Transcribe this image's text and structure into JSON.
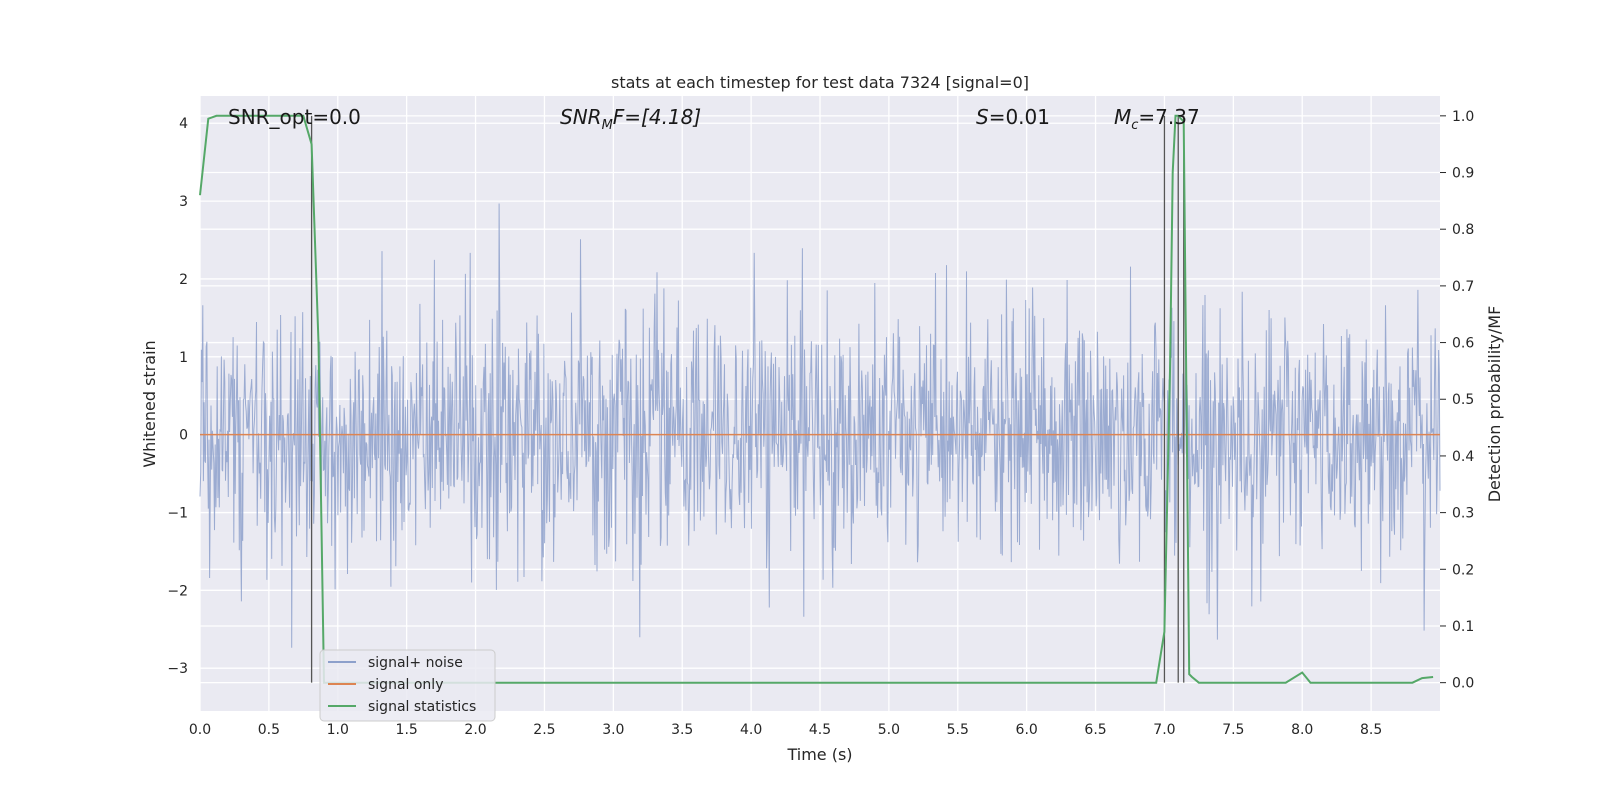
{
  "chart_data": {
    "type": "line",
    "title": "stats at each timestep for test data 7324 [signal=0]",
    "xlabel": "Time (s)",
    "ylabel_left": "Whitened strain",
    "ylabel_right": "Detection probability/MF",
    "xlim": [
      0.0,
      9.0
    ],
    "ylim_left": [
      -3.55,
      4.35
    ],
    "ylim_right": [
      -0.05,
      1.035
    ],
    "xticks": [
      0.0,
      0.5,
      1.0,
      1.5,
      2.0,
      2.5,
      3.0,
      3.5,
      4.0,
      4.5,
      5.0,
      5.5,
      6.0,
      6.5,
      7.0,
      7.5,
      8.0,
      8.5
    ],
    "xtick_labels": [
      "0.0",
      "0.5",
      "1.0",
      "1.5",
      "2.0",
      "2.5",
      "3.0",
      "3.5",
      "4.0",
      "4.5",
      "5.0",
      "5.5",
      "6.0",
      "6.5",
      "7.0",
      "7.5",
      "8.0",
      "8.5"
    ],
    "yticks_left": [
      -3,
      -2,
      -1,
      0,
      1,
      2,
      3,
      4
    ],
    "ytick_labels_left": [
      "−3",
      "−2",
      "−1",
      "0",
      "1",
      "2",
      "3",
      "4"
    ],
    "yticks_right": [
      0.0,
      0.1,
      0.2,
      0.3,
      0.4,
      0.5,
      0.6,
      0.7,
      0.8,
      0.9,
      1.0
    ],
    "ytick_labels_right": [
      "0.0",
      "0.1",
      "0.2",
      "0.3",
      "0.4",
      "0.5",
      "0.6",
      "0.7",
      "0.8",
      "0.9",
      "1.0"
    ],
    "grid": true,
    "legend_position": "lower-left",
    "annotations": {
      "snr_opt": "SNR_opt=0.0",
      "snr_mf_base": "SNR",
      "snr_mf_sub": "M",
      "snr_mf_rest": "F=[4.18]",
      "s_base": "S",
      "s_rest": "=0.01",
      "mc_base": "M",
      "mc_sub": "c",
      "mc_rest": "=7.37"
    },
    "vertical_lines_x": [
      0.81,
      7.0,
      7.1,
      7.14
    ],
    "series": [
      {
        "name": "signal+ noise",
        "color": "#8da0cb",
        "axis": "left",
        "kind": "noise",
        "sample_count": 1800,
        "std": 0.78
      },
      {
        "name": "signal only",
        "color": "#dd8452",
        "axis": "left",
        "x": [
          0.0,
          9.0
        ],
        "y": [
          0.0,
          0.0
        ]
      },
      {
        "name": "signal statistics",
        "color": "#55a868",
        "axis": "right",
        "x": [
          0.0,
          0.06,
          0.12,
          0.25,
          0.5,
          0.6,
          0.7,
          0.75,
          0.81,
          0.86,
          0.9,
          1.0,
          2.0,
          3.0,
          4.0,
          5.0,
          6.0,
          6.94,
          7.0,
          7.04,
          7.06,
          7.08,
          7.1,
          7.14,
          7.18,
          7.2,
          7.25,
          7.5,
          7.88,
          8.0,
          8.06,
          8.5,
          8.8,
          8.87,
          8.95
        ],
        "y": [
          0.86,
          0.995,
          1.0,
          1.0,
          1.0,
          1.0,
          1.0,
          1.0,
          0.95,
          0.6,
          0.0,
          0.0,
          0.0,
          0.0,
          0.0,
          0.0,
          0.0,
          0.0,
          0.09,
          0.55,
          0.9,
          1.0,
          1.0,
          0.99,
          0.015,
          0.01,
          0.0,
          0.0,
          0.0,
          0.018,
          0.0,
          0.0,
          0.0,
          0.008,
          0.01
        ]
      }
    ]
  }
}
